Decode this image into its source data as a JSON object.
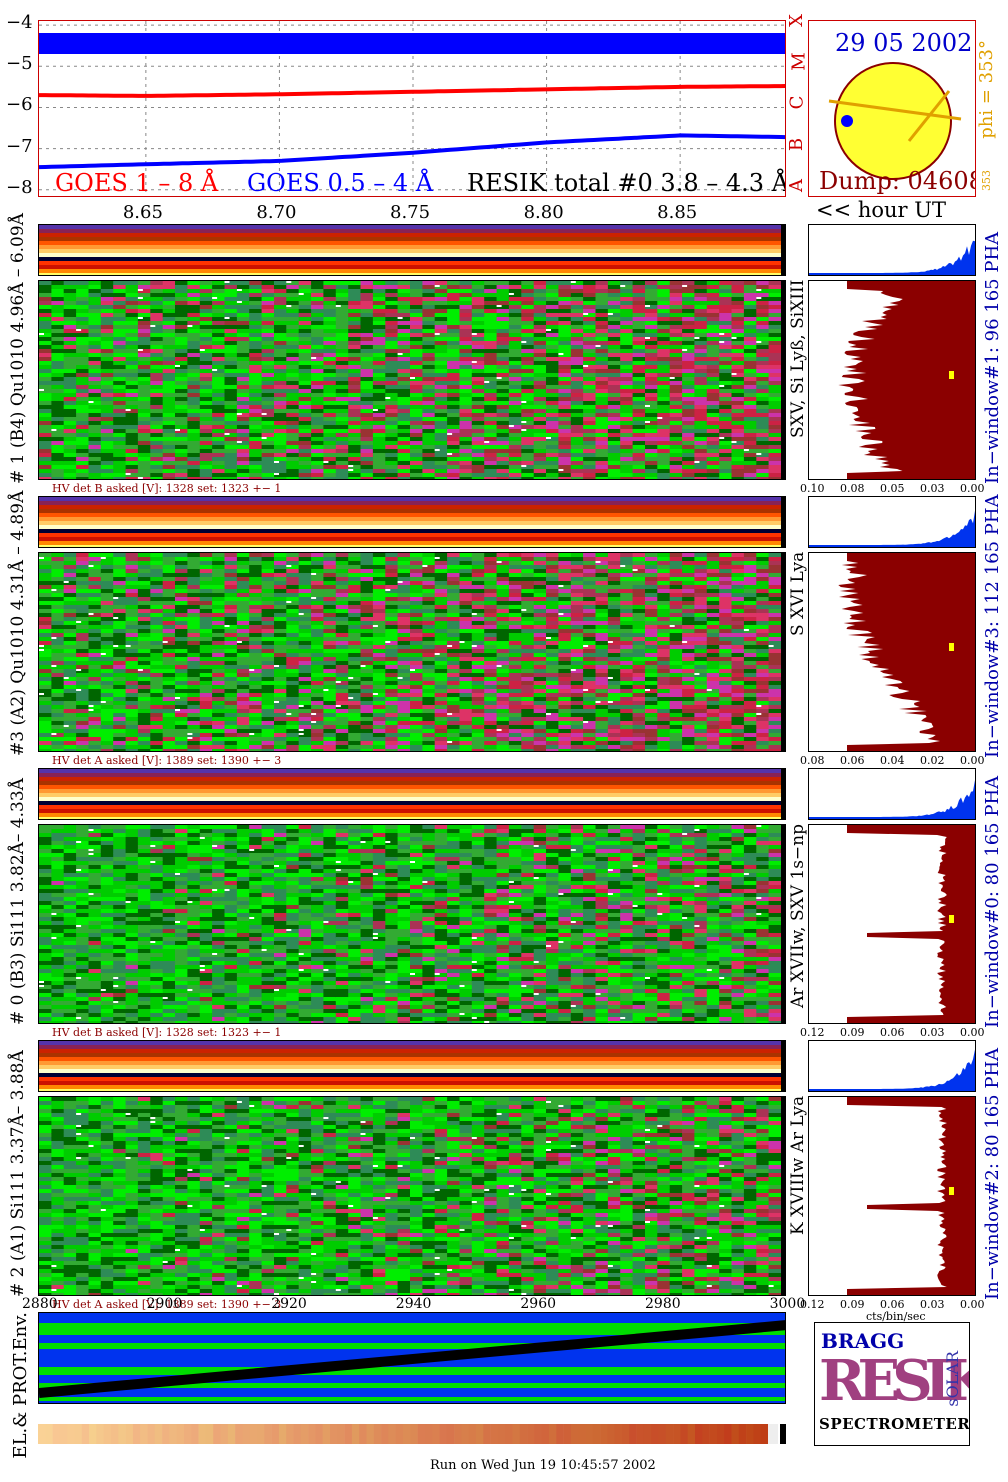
{
  "goes": {
    "legend_goes18": "GOES 1 – 8 Å",
    "legend_goes054": "GOES 0.5 – 4 Å",
    "legend_resik": "RESIK total #0  3.8 – 4.3 Å",
    "y_ticks": [
      "−4",
      "−5",
      "−6",
      "−7",
      "−8"
    ],
    "class_letters": [
      "X",
      "M",
      "C",
      "B",
      "A"
    ],
    "x_ticks": [
      "8.65",
      "8.70",
      "8.75",
      "8.80",
      "8.85"
    ],
    "x_unit": "<< hour UT",
    "colors": {
      "goes18": "#ff0000",
      "goes054": "#0000ff",
      "resik": "#000000"
    }
  },
  "sun": {
    "date": "29 05 2002",
    "dump": "Dump: 04608",
    "phi": "phi = 353°",
    "phi_sub": "353",
    "phi_bottom": "353"
  },
  "channels": [
    {
      "id": "ch1",
      "label": "# 1 (B4) Qu1010 4.96Å – 6.09Å",
      "lines": "SXV, Si Lyß, SiXIII",
      "window": "In−window#1:   96 165  PHA",
      "hv": "HV det B asked [V]:  1328 set:  1323  +−    1",
      "xticks": [
        "0.10",
        "0.08",
        "0.05",
        "0.03",
        "0.00"
      ]
    },
    {
      "id": "ch3",
      "label": "#3 (A2) Qu1010  4.31Å – 4.89Å",
      "lines": "S XVI Lya",
      "window": "In−window#3:   112 165 PHA",
      "hv": "HV det A asked [V]:  1389 set:  1390  +−    3",
      "xticks": [
        "0.08",
        "0.06",
        "0.04",
        "0.02",
        "0.00"
      ]
    },
    {
      "id": "ch0",
      "label": "# 0 (B3) Si111  3.82Å– 4.33Å",
      "lines": "Ar XVIIw,  SXV 1s−np",
      "window": "In−window#0:   80 165  PHA",
      "hv": "HV det B asked [V]:  1328 set:  1323  +−    1",
      "xticks": [
        "0.12",
        "0.09",
        "0.06",
        "0.03",
        "0.00"
      ]
    },
    {
      "id": "ch2",
      "label": "# 2 (A1) Si111  3.37Å– 3.88Å",
      "lines": "K XVIIIw  Ar Lya",
      "window": "In−window#2:   80 165  PHA",
      "hv": "HV det A asked [V]:  1389 set:  1390  +−    3",
      "xticks": [
        "0.12",
        "0.09",
        "0.06",
        "0.03",
        "0.00"
      ]
    }
  ],
  "spectra_xunit": "cts/bin/sec",
  "bottom_axis": [
    "2880",
    "2900",
    "2920",
    "2940",
    "2960",
    "2980",
    "3000"
  ],
  "env_label": "EL.& PROT.Env.",
  "logo": {
    "bragg": "BRAGG",
    "resik": "RESIK",
    "solar": "sOLAR",
    "spectrometer": "SPECTROMETER"
  },
  "footer": "Run on Wed Jun 19 10:45:57 2002",
  "chart_data": {
    "type": "line",
    "x": [
      8.61,
      8.65,
      8.7,
      8.75,
      8.8,
      8.85,
      8.89
    ],
    "series": [
      {
        "name": "GOES 1 – 8 Å",
        "values": [
          -5.7,
          -5.72,
          -5.68,
          -5.62,
          -5.56,
          -5.5,
          -5.48
        ]
      },
      {
        "name": "GOES 0.5 – 4 Å",
        "values": [
          -7.45,
          -7.38,
          -7.3,
          -7.1,
          -6.85,
          -6.68,
          -6.72
        ]
      },
      {
        "name": "RESIK total #0  3.8 – 4.3 Å",
        "values": [
          -5.8,
          -5.85,
          -5.83,
          -5.8,
          -5.75,
          -5.68,
          -5.6
        ]
      }
    ],
    "ylim": [
      -8.2,
      -3.9
    ]
  }
}
